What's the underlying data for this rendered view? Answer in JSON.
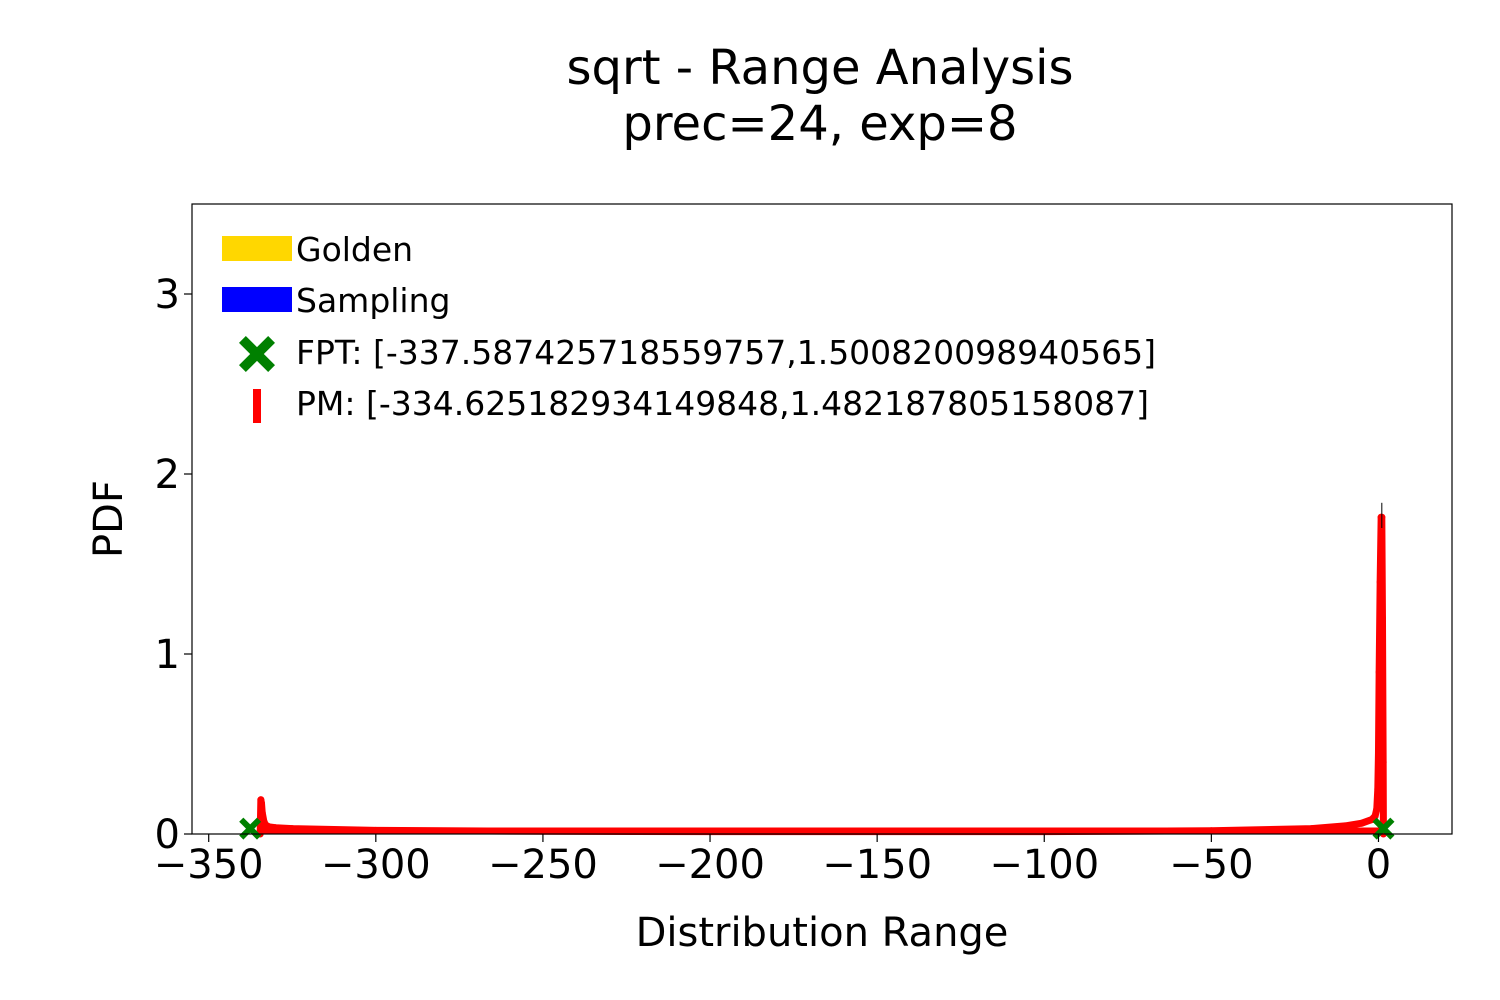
{
  "chart_data": {
    "type": "line",
    "title_line1": "sqrt - Range Analysis",
    "title_line2": "prec=24, exp=8",
    "xlabel": "Distribution Range",
    "ylabel": "PDF",
    "xlim": [
      -355,
      22
    ],
    "ylim": [
      0,
      3.5
    ],
    "x_ticks": [
      -350,
      -300,
      -250,
      -200,
      -150,
      -100,
      -50,
      0
    ],
    "x_tick_labels": [
      "−350",
      "−300",
      "−250",
      "−200",
      "−150",
      "−100",
      "−50",
      "0"
    ],
    "y_ticks": [
      0,
      1,
      2,
      3
    ],
    "y_tick_labels": [
      "0",
      "1",
      "2",
      "3"
    ],
    "grid": false,
    "legend_position": "top-left",
    "legend": [
      {
        "label": "Golden",
        "marker": "band",
        "color": "#ffd700"
      },
      {
        "label": "Sampling",
        "marker": "band",
        "color": "#0000ff"
      },
      {
        "label": "FPT: [-337.587425718559757,1.500820098940565]",
        "marker": "x-filled",
        "color": "#008000"
      },
      {
        "label": "PM: [-334.625182934149848,1.482187805158087]",
        "marker": "vline",
        "color": "#ff0000"
      }
    ],
    "series": [
      {
        "name": "PM: [-334.625182934149848,1.482187805158087]",
        "color": "#ff0000",
        "x": [
          -334.6,
          -334.4,
          -334.2,
          -334.0,
          -333.5,
          -333.0,
          -332.0,
          -330.0,
          -325.0,
          -300.0,
          -250.0,
          -200.0,
          -150.0,
          -100.0,
          -50.0,
          -20.0,
          -10.0,
          -5.0,
          -2.0,
          -1.0,
          -0.5,
          -0.2,
          0.0,
          0.2,
          0.5,
          0.8,
          1.0,
          1.2,
          1.4,
          1.48
        ],
        "values": [
          0.0,
          0.19,
          0.17,
          0.12,
          0.07,
          0.05,
          0.04,
          0.035,
          0.03,
          0.02,
          0.015,
          0.013,
          0.013,
          0.013,
          0.018,
          0.03,
          0.045,
          0.06,
          0.08,
          0.1,
          0.14,
          0.25,
          0.45,
          0.9,
          1.4,
          1.76,
          1.76,
          1.2,
          0.4,
          0.0
        ]
      },
      {
        "name": "FPT: [-337.587425718559757,1.500820098940565]",
        "color": "#008000",
        "marker_points": [
          {
            "x": -337.59,
            "y": 0.03
          },
          {
            "x": 1.5,
            "y": 0.03
          }
        ]
      }
    ]
  },
  "colors": {
    "golden": "#ffd700",
    "sampling": "#0000ff",
    "fpt": "#008000",
    "pm": "#ff0000"
  }
}
